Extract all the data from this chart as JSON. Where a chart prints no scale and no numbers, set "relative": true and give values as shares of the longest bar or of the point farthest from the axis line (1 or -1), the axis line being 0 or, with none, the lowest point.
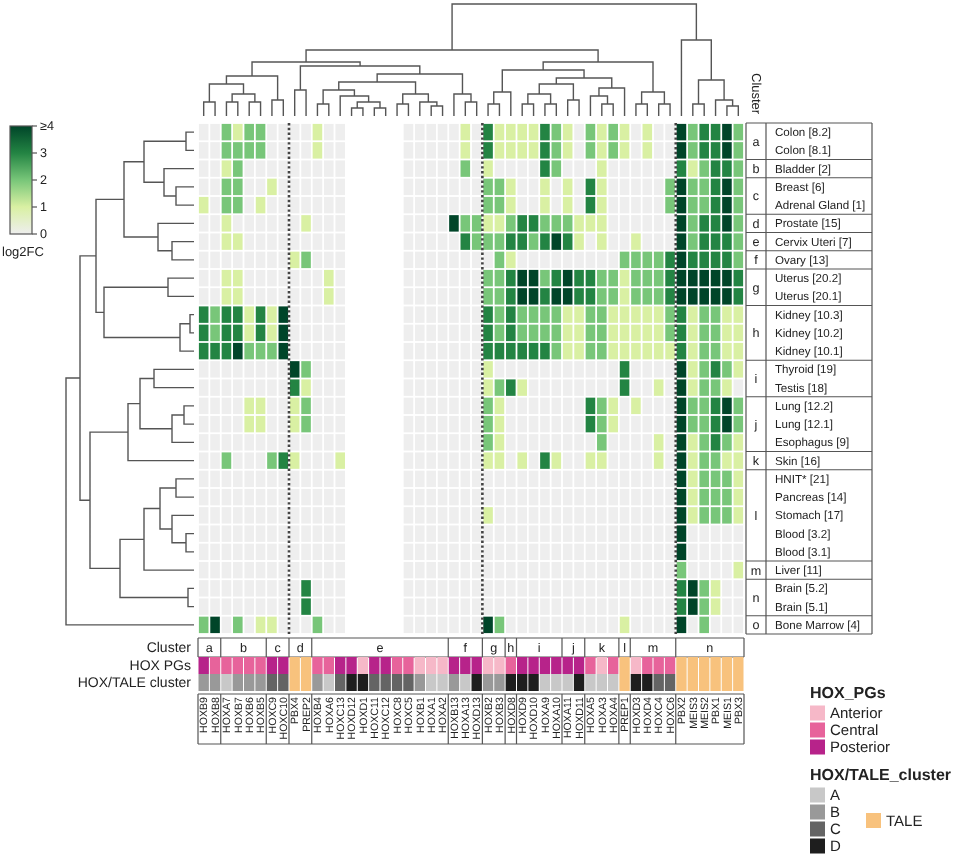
{
  "chart_data": [
    {
      "type": "heatmap",
      "categories": [
        "HOXB9",
        "HOXB8",
        "HOXA7",
        "HOXB7",
        "HOXB6",
        "HOXB5",
        "HOXC9",
        "HOXC10",
        "PBX4",
        "PREP2",
        "HOXB4",
        "HOXA6",
        "HOXC13",
        "HOXD12",
        "HOXD1",
        "HOXC11",
        "HOXC12",
        "HOXC8",
        "HOXC5",
        "HOXB1",
        "HOXA1",
        "HOXA2",
        "HOXB13",
        "HOXA13",
        "HOXD13",
        "HOXB2",
        "HOXB3",
        "HOXD8",
        "HOXD9",
        "HOXD10",
        "HOXA9",
        "HOXA10",
        "HOXA11",
        "HOXD11",
        "HOXA5",
        "HOXA3",
        "HOXA4",
        "PREP1",
        "HOXD3",
        "HOXD4",
        "HOXC4",
        "HOXC6",
        "PBX2",
        "MEIS3",
        "MEIS2",
        "PBX1",
        "MEIS1",
        "PBX3"
      ],
      "y_categories": [
        null,
        null,
        null,
        null,
        null,
        null,
        null,
        null,
        null,
        null,
        null,
        null,
        null,
        null,
        null,
        null,
        null,
        null,
        null,
        null,
        null,
        null,
        null,
        null,
        null,
        null,
        null,
        null
      ],
      "clabel": "log2FC",
      "clim": [
        0,
        4
      ],
      "cticks": [
        0,
        1,
        2,
        3,
        {
          "value": 4,
          "label": "≥4"
        }
      ],
      "cells": [
        [
          0,
          0,
          2,
          1,
          2,
          2,
          0,
          0,
          0,
          0,
          1,
          0,
          0,
          null,
          null,
          null,
          null,
          null,
          0,
          0,
          0,
          0,
          0,
          1,
          0,
          3,
          1,
          1,
          1,
          1,
          3,
          2,
          1,
          0,
          2,
          1,
          2,
          1,
          0,
          1,
          0,
          0,
          4,
          2,
          3,
          3,
          4,
          2
        ],
        [
          0,
          0,
          2,
          2,
          2,
          2,
          0,
          0,
          0,
          0,
          1,
          0,
          0,
          null,
          null,
          null,
          null,
          null,
          0,
          0,
          0,
          0,
          0,
          1,
          0,
          3,
          1,
          1,
          1,
          1,
          3,
          2,
          1,
          0,
          2,
          1,
          2,
          1,
          0,
          1,
          0,
          0,
          4,
          2,
          3,
          3,
          4,
          2
        ],
        [
          0,
          0,
          1,
          2,
          0,
          0,
          0,
          0,
          0,
          0,
          0,
          0,
          0,
          null,
          null,
          null,
          null,
          null,
          0,
          0,
          0,
          0,
          0,
          2,
          0,
          1,
          0,
          0,
          0,
          0,
          3,
          2,
          0,
          0,
          0,
          1,
          0,
          0,
          0,
          0,
          0,
          0,
          3,
          1,
          2,
          3,
          3,
          2
        ],
        [
          0,
          0,
          2,
          2,
          0,
          0,
          1,
          0,
          0,
          0,
          0,
          0,
          0,
          null,
          null,
          null,
          null,
          null,
          0,
          0,
          0,
          0,
          0,
          0,
          0,
          2,
          2,
          1,
          0,
          0,
          1,
          0,
          1,
          0,
          3,
          1,
          0,
          0,
          0,
          0,
          0,
          2,
          4,
          2,
          2,
          3,
          4,
          2
        ],
        [
          1,
          0,
          2,
          2,
          0,
          1,
          0,
          0,
          0,
          0,
          0,
          0,
          0,
          null,
          null,
          null,
          null,
          null,
          0,
          0,
          0,
          0,
          0,
          0,
          0,
          2,
          2,
          1,
          0,
          0,
          1,
          0,
          1,
          0,
          3,
          1,
          0,
          0,
          0,
          0,
          0,
          2,
          4,
          2,
          2,
          3,
          4,
          2
        ],
        [
          0,
          0,
          1,
          0,
          0,
          0,
          0,
          0,
          0,
          1,
          0,
          0,
          0,
          null,
          null,
          null,
          null,
          null,
          0,
          0,
          0,
          0,
          4,
          2,
          2,
          1,
          1,
          2,
          3,
          3,
          2,
          2,
          2,
          1,
          1,
          1,
          0,
          0,
          0,
          0,
          0,
          0,
          4,
          2,
          3,
          3,
          4,
          2
        ],
        [
          0,
          0,
          1,
          1,
          0,
          0,
          0,
          0,
          0,
          0,
          0,
          0,
          0,
          null,
          null,
          null,
          null,
          null,
          0,
          0,
          0,
          0,
          0,
          3,
          2,
          2,
          2,
          3,
          3,
          2,
          3,
          4,
          3,
          1,
          0,
          1,
          0,
          0,
          1,
          0,
          0,
          0,
          4,
          2,
          3,
          3,
          3,
          2
        ],
        [
          0,
          0,
          0,
          0,
          0,
          0,
          0,
          0,
          1,
          2,
          0,
          0,
          0,
          null,
          null,
          null,
          null,
          null,
          0,
          0,
          0,
          0,
          0,
          0,
          0,
          0,
          2,
          1,
          0,
          0,
          0,
          0,
          0,
          0,
          0,
          0,
          0,
          2,
          2,
          2,
          2,
          3,
          4,
          3,
          3,
          3,
          3,
          2
        ],
        [
          0,
          0,
          1,
          1,
          0,
          0,
          0,
          0,
          0,
          0,
          0,
          1,
          0,
          null,
          null,
          null,
          null,
          null,
          0,
          0,
          0,
          0,
          0,
          0,
          0,
          2,
          2,
          3,
          4,
          4,
          2,
          3,
          4,
          3,
          3,
          2,
          2,
          1,
          2,
          2,
          2,
          3,
          4,
          4,
          4,
          4,
          4,
          3
        ],
        [
          0,
          0,
          1,
          1,
          0,
          0,
          0,
          0,
          0,
          0,
          0,
          1,
          0,
          null,
          null,
          null,
          null,
          null,
          0,
          0,
          0,
          0,
          0,
          0,
          0,
          2,
          2,
          3,
          4,
          4,
          3,
          4,
          4,
          3,
          3,
          2,
          2,
          1,
          2,
          2,
          2,
          3,
          4,
          4,
          4,
          4,
          4,
          3
        ],
        [
          3,
          2,
          3,
          3,
          1,
          3,
          1,
          4,
          0,
          0,
          0,
          0,
          0,
          null,
          null,
          null,
          null,
          null,
          0,
          0,
          0,
          0,
          0,
          0,
          0,
          3,
          2,
          3,
          2,
          2,
          2,
          2,
          1,
          1,
          2,
          2,
          1,
          1,
          1,
          1,
          1,
          2,
          3,
          1,
          2,
          2,
          1,
          1
        ],
        [
          3,
          2,
          3,
          3,
          1,
          3,
          1,
          4,
          0,
          0,
          0,
          0,
          0,
          null,
          null,
          null,
          null,
          null,
          0,
          0,
          0,
          0,
          0,
          0,
          0,
          3,
          2,
          3,
          2,
          2,
          2,
          2,
          1,
          1,
          2,
          2,
          1,
          1,
          1,
          1,
          1,
          2,
          3,
          1,
          2,
          2,
          1,
          1
        ],
        [
          3,
          3,
          3,
          4,
          2,
          2,
          2,
          4,
          0,
          0,
          0,
          0,
          0,
          null,
          null,
          null,
          null,
          null,
          0,
          0,
          0,
          0,
          0,
          0,
          0,
          3,
          3,
          3,
          3,
          3,
          3,
          2,
          1,
          1,
          2,
          2,
          1,
          1,
          1,
          1,
          1,
          1,
          3,
          1,
          2,
          2,
          1,
          1
        ],
        [
          0,
          0,
          0,
          0,
          0,
          0,
          0,
          0,
          4,
          2,
          0,
          0,
          0,
          null,
          null,
          null,
          null,
          null,
          0,
          0,
          0,
          0,
          0,
          0,
          0,
          1,
          0,
          0,
          0,
          0,
          0,
          0,
          0,
          0,
          0,
          0,
          0,
          3,
          0,
          0,
          0,
          0,
          4,
          1,
          2,
          3,
          2,
          1
        ],
        [
          0,
          0,
          0,
          0,
          0,
          0,
          0,
          0,
          3,
          1,
          0,
          0,
          0,
          null,
          null,
          null,
          null,
          null,
          0,
          0,
          0,
          0,
          0,
          0,
          0,
          1,
          2,
          3,
          1,
          0,
          0,
          0,
          0,
          0,
          0,
          0,
          0,
          3,
          0,
          0,
          1,
          0,
          4,
          1,
          2,
          2,
          1,
          0
        ],
        [
          0,
          0,
          0,
          0,
          1,
          1,
          0,
          0,
          1,
          2,
          0,
          0,
          0,
          null,
          null,
          null,
          null,
          null,
          0,
          0,
          0,
          0,
          0,
          0,
          0,
          2,
          1,
          0,
          0,
          0,
          0,
          0,
          0,
          0,
          3,
          2,
          1,
          0,
          1,
          0,
          0,
          0,
          4,
          2,
          2,
          3,
          4,
          2
        ],
        [
          0,
          0,
          0,
          0,
          1,
          1,
          0,
          0,
          1,
          2,
          0,
          0,
          0,
          null,
          null,
          null,
          null,
          null,
          0,
          0,
          0,
          0,
          0,
          0,
          0,
          2,
          1,
          0,
          0,
          0,
          0,
          0,
          0,
          0,
          3,
          2,
          1,
          0,
          0,
          0,
          0,
          0,
          4,
          2,
          2,
          3,
          4,
          2
        ],
        [
          0,
          0,
          0,
          0,
          0,
          0,
          0,
          0,
          0,
          0,
          0,
          0,
          0,
          null,
          null,
          null,
          null,
          null,
          0,
          0,
          0,
          0,
          0,
          0,
          0,
          2,
          1,
          0,
          0,
          0,
          0,
          0,
          0,
          0,
          0,
          2,
          0,
          0,
          0,
          0,
          1,
          0,
          4,
          1,
          2,
          3,
          2,
          1
        ],
        [
          0,
          0,
          2,
          0,
          0,
          0,
          2,
          3,
          1,
          0,
          0,
          0,
          1,
          null,
          null,
          null,
          null,
          null,
          0,
          0,
          0,
          0,
          0,
          0,
          0,
          1,
          1,
          0,
          1,
          0,
          3,
          1,
          0,
          0,
          1,
          1,
          0,
          0,
          0,
          0,
          1,
          0,
          4,
          1,
          2,
          2,
          1,
          1
        ],
        [
          0,
          0,
          0,
          0,
          0,
          0,
          0,
          0,
          0,
          0,
          0,
          0,
          0,
          null,
          null,
          null,
          null,
          null,
          0,
          0,
          0,
          0,
          0,
          0,
          0,
          0,
          0,
          0,
          0,
          0,
          0,
          0,
          0,
          0,
          0,
          0,
          0,
          0,
          0,
          0,
          0,
          0,
          4,
          1,
          2,
          2,
          2,
          1
        ],
        [
          0,
          0,
          0,
          0,
          0,
          0,
          0,
          0,
          0,
          0,
          0,
          0,
          0,
          null,
          null,
          null,
          null,
          null,
          0,
          0,
          0,
          0,
          0,
          0,
          0,
          0,
          0,
          0,
          0,
          0,
          0,
          0,
          0,
          0,
          0,
          0,
          0,
          0,
          0,
          0,
          0,
          0,
          4,
          1,
          2,
          2,
          2,
          1
        ],
        [
          0,
          0,
          0,
          0,
          0,
          0,
          0,
          0,
          0,
          0,
          0,
          0,
          0,
          null,
          null,
          null,
          null,
          null,
          0,
          0,
          0,
          0,
          0,
          0,
          0,
          1,
          0,
          0,
          0,
          0,
          0,
          0,
          0,
          0,
          0,
          0,
          0,
          0,
          0,
          0,
          0,
          0,
          4,
          1,
          2,
          2,
          2,
          1
        ],
        [
          0,
          0,
          0,
          0,
          0,
          0,
          0,
          0,
          0,
          0,
          0,
          0,
          0,
          null,
          null,
          null,
          null,
          null,
          0,
          0,
          0,
          0,
          0,
          0,
          0,
          0,
          0,
          0,
          0,
          0,
          0,
          0,
          0,
          0,
          0,
          0,
          0,
          0,
          0,
          0,
          0,
          0,
          4,
          0,
          0,
          0,
          0,
          0
        ],
        [
          0,
          0,
          0,
          0,
          0,
          0,
          0,
          0,
          0,
          0,
          0,
          0,
          0,
          null,
          null,
          null,
          null,
          null,
          0,
          0,
          0,
          0,
          0,
          0,
          0,
          0,
          0,
          0,
          0,
          0,
          0,
          0,
          0,
          0,
          0,
          0,
          0,
          0,
          0,
          0,
          0,
          0,
          4,
          0,
          0,
          0,
          0,
          0
        ],
        [
          0,
          0,
          0,
          0,
          0,
          0,
          0,
          0,
          0,
          0,
          0,
          0,
          0,
          null,
          null,
          null,
          null,
          null,
          0,
          0,
          0,
          0,
          0,
          0,
          0,
          0,
          0,
          0,
          0,
          0,
          0,
          0,
          0,
          0,
          0,
          0,
          0,
          0,
          0,
          0,
          0,
          0,
          2,
          0,
          0,
          0,
          0,
          1
        ],
        [
          0,
          0,
          0,
          0,
          0,
          0,
          0,
          0,
          0,
          3,
          0,
          0,
          0,
          null,
          null,
          null,
          null,
          null,
          0,
          0,
          0,
          0,
          0,
          0,
          0,
          0,
          0,
          0,
          0,
          0,
          0,
          0,
          0,
          0,
          0,
          0,
          0,
          0,
          0,
          0,
          0,
          0,
          3,
          4,
          2,
          1,
          0,
          0
        ],
        [
          0,
          0,
          0,
          0,
          0,
          0,
          0,
          0,
          0,
          3,
          0,
          0,
          0,
          null,
          null,
          null,
          null,
          null,
          0,
          0,
          0,
          0,
          0,
          0,
          0,
          0,
          0,
          0,
          0,
          0,
          0,
          0,
          0,
          0,
          0,
          0,
          0,
          0,
          0,
          0,
          0,
          0,
          3,
          4,
          2,
          1,
          0,
          0
        ],
        [
          2,
          4,
          0,
          2,
          0,
          1,
          1,
          0,
          0,
          0,
          2,
          0,
          0,
          null,
          null,
          null,
          null,
          null,
          0,
          0,
          0,
          0,
          0,
          0,
          0,
          4,
          2,
          0,
          0,
          0,
          0,
          0,
          0,
          0,
          0,
          0,
          0,
          1,
          0,
          0,
          0,
          0,
          4,
          0,
          2,
          0,
          0,
          0
        ]
      ]
    },
    {
      "type": "heatmap",
      "categories": [
        "Cluster"
      ],
      "y_categories": [
        "Colon [8.2]",
        "Colon [8.1]",
        "Bladder [2]",
        "Breast [6]",
        "Adrenal Gland [1]",
        "Prostate [15]",
        "Cervix Uteri [7]",
        "Ovary [13]",
        "Uterus [20.2]",
        "Uterus [20.1]",
        "Kidney [10.3]",
        "Kidney [10.2]",
        "Kidney [10.1]",
        "Thyroid [19]",
        "Testis [18]",
        "Lung [12.2]",
        "Lung [12.1]",
        "Esophagus [9]",
        "Skin [16]",
        "HNIT* [21]",
        "Pancreas [14]",
        "Stomach [17]",
        "Blood [3.2]",
        "Blood [3.1]",
        "Liver [11]",
        "Brain [5.2]",
        "Brain [5.1]",
        "Bone Marrow [4]"
      ],
      "cells": [
        [
          null
        ],
        [
          null
        ],
        [
          null
        ],
        [
          null
        ],
        [
          null
        ],
        [
          null
        ],
        [
          null
        ],
        [
          null
        ],
        [
          null
        ],
        [
          null
        ],
        [
          null
        ],
        [
          null
        ],
        [
          null
        ],
        [
          null
        ],
        [
          null
        ],
        [
          null
        ],
        [
          null
        ],
        [
          null
        ],
        [
          null
        ],
        [
          null
        ],
        [
          null
        ],
        [
          null
        ],
        [
          null
        ],
        [
          null
        ],
        [
          null
        ],
        [
          null
        ],
        [
          null
        ],
        [
          null
        ]
      ],
      "cell_labels": [
        [
          "a"
        ],
        [
          null
        ],
        [
          "b"
        ],
        [
          "c"
        ],
        [
          null
        ],
        [
          "d"
        ],
        [
          "e"
        ],
        [
          "f"
        ],
        [
          "g"
        ],
        [
          null
        ],
        [
          "h"
        ],
        [
          null
        ],
        [
          null
        ],
        [
          "i"
        ],
        [
          null
        ],
        [
          "j"
        ],
        [
          null
        ],
        [
          null
        ],
        [
          "k"
        ],
        [
          "l"
        ],
        [
          null
        ],
        [
          null
        ],
        [
          null
        ],
        [
          null
        ],
        [
          "m"
        ],
        [
          "n"
        ],
        [
          null
        ],
        [
          "o"
        ]
      ]
    },
    {
      "type": "heatmap",
      "categories": [
        null,
        null,
        null,
        null,
        null,
        null,
        null,
        null,
        null,
        null,
        null,
        null,
        null,
        null,
        null,
        null,
        null,
        null,
        null,
        null,
        null,
        null,
        null,
        null,
        null,
        null,
        null,
        null,
        null,
        null,
        null,
        null,
        null,
        null,
        null,
        null,
        null,
        null,
        null,
        null,
        null,
        null,
        null,
        null,
        null,
        null,
        null,
        null
      ],
      "y_categories": [
        "Cluster"
      ],
      "cells": [
        [
          null,
          null,
          null,
          null,
          null,
          null,
          null,
          null,
          null,
          null,
          null,
          null,
          null,
          null,
          null,
          null,
          null,
          null,
          null,
          null,
          null,
          null,
          null,
          null,
          null,
          null,
          null,
          null,
          null,
          null,
          null,
          null,
          null,
          null,
          null,
          null,
          null,
          null,
          null,
          null,
          null,
          null,
          null,
          null,
          null,
          null,
          null,
          null
        ]
      ],
      "cell_labels": [
        [
          "a",
          null,
          "b",
          null,
          null,
          null,
          "c",
          null,
          "d",
          null,
          "e",
          null,
          null,
          null,
          null,
          null,
          null,
          null,
          null,
          null,
          null,
          null,
          "f",
          null,
          null,
          "g",
          null,
          "h",
          "i",
          null,
          null,
          null,
          "j",
          null,
          "k",
          null,
          null,
          "l",
          "m",
          null,
          null,
          null,
          "n",
          null,
          null,
          null,
          null,
          null
        ]
      ]
    },
    {
      "type": "bar",
      "stacked": true,
      "relative": true,
      "categories": [
        null,
        null,
        null,
        null,
        null,
        null,
        null,
        null,
        null,
        null,
        null,
        null,
        null,
        null,
        null,
        null,
        null,
        null,
        null,
        null,
        null,
        null,
        null,
        null,
        null,
        null,
        null,
        null,
        null,
        null,
        null,
        null,
        null,
        null,
        null,
        null,
        null,
        null,
        null,
        null,
        null,
        null,
        null,
        null,
        null,
        null,
        null,
        null
      ],
      "ylabel": "HOX PGs",
      "legend": "right",
      "legend_title": "HOX_PGs",
      "series": [
        {
          "name": "Anterior",
          "color": "#f6b8c8",
          "values": [
            null,
            null,
            null,
            null,
            null,
            null,
            null,
            null,
            null,
            null,
            null,
            null,
            null,
            null,
            1,
            null,
            null,
            null,
            null,
            1,
            1,
            1,
            null,
            null,
            null,
            1,
            1,
            null,
            null,
            null,
            null,
            null,
            null,
            null,
            null,
            1,
            null,
            null,
            1,
            null,
            null,
            null,
            null,
            null,
            null,
            null,
            null,
            null
          ]
        },
        {
          "name": "Central",
          "color": "#e7639b",
          "values": [
            null,
            1,
            1,
            1,
            1,
            1,
            null,
            null,
            null,
            null,
            1,
            1,
            null,
            null,
            null,
            null,
            null,
            1,
            1,
            null,
            null,
            null,
            null,
            null,
            null,
            null,
            null,
            1,
            null,
            null,
            null,
            null,
            null,
            null,
            1,
            null,
            1,
            null,
            null,
            1,
            1,
            1,
            null,
            null,
            null,
            null,
            null,
            null
          ]
        },
        {
          "name": "Posterior",
          "color": "#b7238a",
          "values": [
            1,
            null,
            null,
            null,
            null,
            null,
            1,
            1,
            null,
            null,
            null,
            null,
            1,
            1,
            null,
            1,
            1,
            null,
            null,
            null,
            null,
            null,
            1,
            1,
            1,
            null,
            null,
            null,
            1,
            1,
            1,
            1,
            1,
            1,
            null,
            null,
            null,
            null,
            null,
            null,
            null,
            null,
            null,
            null,
            null,
            null,
            null,
            null
          ]
        },
        {
          "color": "#f8c27d",
          "values": [
            null,
            null,
            null,
            null,
            null,
            null,
            null,
            null,
            1,
            1,
            null,
            null,
            null,
            null,
            null,
            null,
            null,
            null,
            null,
            null,
            null,
            null,
            null,
            null,
            null,
            null,
            null,
            null,
            null,
            null,
            null,
            null,
            null,
            null,
            null,
            null,
            null,
            1,
            null,
            null,
            null,
            null,
            1,
            1,
            1,
            1,
            1,
            1
          ]
        }
      ]
    },
    {
      "type": "bar",
      "stacked": true,
      "relative": true,
      "categories": [
        null,
        null,
        null,
        null,
        null,
        null,
        null,
        null,
        null,
        null,
        null,
        null,
        null,
        null,
        null,
        null,
        null,
        null,
        null,
        null,
        null,
        null,
        null,
        null,
        null,
        null,
        null,
        null,
        null,
        null,
        null,
        null,
        null,
        null,
        null,
        null,
        null,
        null,
        null,
        null,
        null,
        null,
        null,
        null,
        null,
        null,
        null,
        null
      ],
      "ylabel": "HOX/TALE cluster",
      "legend": "right",
      "legend_title": "HOX/TALE_cluster",
      "series": [
        {
          "name": "A",
          "color": "#c8c8c8",
          "values": [
            null,
            null,
            1,
            null,
            null,
            null,
            null,
            null,
            null,
            null,
            null,
            1,
            null,
            null,
            null,
            null,
            null,
            null,
            null,
            null,
            1,
            1,
            null,
            1,
            null,
            null,
            null,
            null,
            null,
            null,
            1,
            1,
            1,
            null,
            1,
            1,
            1,
            null,
            null,
            null,
            null,
            null,
            null,
            null,
            null,
            null,
            null,
            null
          ]
        },
        {
          "name": "B",
          "color": "#999999",
          "values": [
            1,
            1,
            null,
            1,
            1,
            1,
            null,
            null,
            null,
            null,
            1,
            null,
            null,
            null,
            null,
            null,
            null,
            null,
            null,
            1,
            null,
            null,
            1,
            null,
            null,
            1,
            1,
            null,
            null,
            null,
            null,
            null,
            null,
            null,
            null,
            null,
            null,
            null,
            null,
            null,
            null,
            null,
            null,
            null,
            null,
            null,
            null,
            null
          ]
        },
        {
          "name": "C",
          "color": "#646464",
          "values": [
            null,
            null,
            null,
            null,
            null,
            null,
            1,
            1,
            null,
            null,
            null,
            null,
            1,
            null,
            null,
            1,
            1,
            1,
            1,
            null,
            null,
            null,
            null,
            null,
            null,
            null,
            null,
            null,
            null,
            null,
            null,
            null,
            null,
            null,
            null,
            null,
            null,
            null,
            null,
            null,
            1,
            1,
            null,
            null,
            null,
            null,
            null,
            null
          ]
        },
        {
          "name": "D",
          "color": "#1e1e1e",
          "values": [
            null,
            null,
            null,
            null,
            null,
            null,
            null,
            null,
            null,
            null,
            null,
            null,
            null,
            1,
            1,
            null,
            null,
            null,
            null,
            null,
            null,
            null,
            null,
            null,
            1,
            null,
            null,
            1,
            1,
            1,
            null,
            null,
            null,
            1,
            null,
            null,
            null,
            null,
            1,
            1,
            null,
            null,
            null,
            null,
            null,
            null,
            null,
            null
          ]
        },
        {
          "name": "TALE",
          "color": "#f8c27d",
          "values": [
            null,
            null,
            null,
            null,
            null,
            null,
            null,
            null,
            1,
            1,
            null,
            null,
            null,
            null,
            null,
            null,
            null,
            null,
            null,
            null,
            null,
            null,
            null,
            null,
            null,
            null,
            null,
            null,
            null,
            null,
            null,
            null,
            null,
            null,
            null,
            null,
            null,
            1,
            null,
            null,
            null,
            null,
            1,
            1,
            1,
            1,
            1,
            1
          ]
        }
      ]
    }
  ]
}
